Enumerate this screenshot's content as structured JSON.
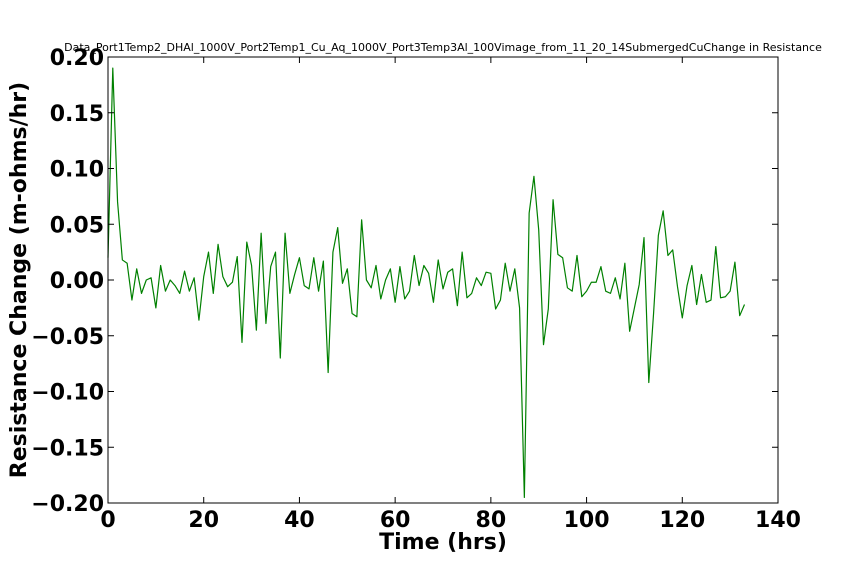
{
  "chart_data": {
    "type": "line",
    "title": "Data_Port1Temp2_DHAl_1000V_Port2Temp1_Cu_Aq_1000V_Port3Temp3Al_100Vimage_from_11_20_14SubmergedCuChange in Resistance",
    "xlabel": "Time (hrs)",
    "ylabel": "Resistance Change (m-ohms/hr)",
    "xlim": [
      0,
      140
    ],
    "ylim": [
      -0.2,
      0.2
    ],
    "x_ticks": [
      0,
      20,
      40,
      60,
      80,
      100,
      120,
      140
    ],
    "x_tick_labels": [
      "0",
      "20",
      "40",
      "60",
      "80",
      "100",
      "120",
      "140"
    ],
    "y_ticks": [
      -0.2,
      -0.15,
      -0.1,
      -0.05,
      0.0,
      0.05,
      0.1,
      0.15,
      0.2
    ],
    "y_tick_labels": [
      "−0.20",
      "−0.15",
      "−0.10",
      "−0.05",
      "0.00",
      "0.05",
      "0.10",
      "0.15",
      "0.20"
    ],
    "grid": false,
    "series": [
      {
        "color": "#008000",
        "points": [
          [
            0.0,
            0.02
          ],
          [
            1.0,
            0.19
          ],
          [
            2.0,
            0.07
          ],
          [
            3.0,
            0.018
          ],
          [
            4.0,
            0.015
          ],
          [
            5.0,
            -0.018
          ],
          [
            6.0,
            0.01
          ],
          [
            7.0,
            -0.012
          ],
          [
            8.0,
            0.0
          ],
          [
            9.0,
            0.002
          ],
          [
            10.0,
            -0.025
          ],
          [
            11.0,
            0.013
          ],
          [
            12.0,
            -0.01
          ],
          [
            13.0,
            0.0
          ],
          [
            14.0,
            -0.005
          ],
          [
            15.0,
            -0.012
          ],
          [
            16.0,
            0.008
          ],
          [
            17.0,
            -0.01
          ],
          [
            18.0,
            0.002
          ],
          [
            19.0,
            -0.036
          ],
          [
            20.0,
            0.003
          ],
          [
            21.0,
            0.025
          ],
          [
            22.0,
            -0.012
          ],
          [
            23.0,
            0.032
          ],
          [
            24.0,
            0.003
          ],
          [
            25.0,
            -0.006
          ],
          [
            26.0,
            -0.002
          ],
          [
            27.0,
            0.021
          ],
          [
            28.0,
            -0.056
          ],
          [
            29.0,
            0.034
          ],
          [
            30.0,
            0.013
          ],
          [
            31.0,
            -0.045
          ],
          [
            32.0,
            0.042
          ],
          [
            33.0,
            -0.039
          ],
          [
            34.0,
            0.012
          ],
          [
            35.0,
            0.025
          ],
          [
            36.0,
            -0.07
          ],
          [
            37.0,
            0.042
          ],
          [
            38.0,
            -0.012
          ],
          [
            39.0,
            0.005
          ],
          [
            40.0,
            0.02
          ],
          [
            41.0,
            -0.005
          ],
          [
            42.0,
            -0.008
          ],
          [
            43.0,
            0.02
          ],
          [
            44.0,
            -0.01
          ],
          [
            45.0,
            0.017
          ],
          [
            46.0,
            -0.083
          ],
          [
            47.0,
            0.025
          ],
          [
            48.0,
            0.047
          ],
          [
            49.0,
            -0.003
          ],
          [
            50.0,
            0.01
          ],
          [
            51.0,
            -0.03
          ],
          [
            52.0,
            -0.033
          ],
          [
            53.0,
            0.054
          ],
          [
            54.0,
            0.0
          ],
          [
            55.0,
            -0.007
          ],
          [
            56.0,
            0.013
          ],
          [
            57.0,
            -0.017
          ],
          [
            58.0,
            0.0
          ],
          [
            59.0,
            0.01
          ],
          [
            60.0,
            -0.02
          ],
          [
            61.0,
            0.012
          ],
          [
            62.0,
            -0.017
          ],
          [
            63.0,
            -0.01
          ],
          [
            64.0,
            0.022
          ],
          [
            65.0,
            -0.005
          ],
          [
            66.0,
            0.013
          ],
          [
            67.0,
            0.006
          ],
          [
            68.0,
            -0.02
          ],
          [
            69.0,
            0.018
          ],
          [
            70.0,
            -0.008
          ],
          [
            71.0,
            0.007
          ],
          [
            72.0,
            0.01
          ],
          [
            73.0,
            -0.023
          ],
          [
            74.0,
            0.025
          ],
          [
            75.0,
            -0.016
          ],
          [
            76.0,
            -0.012
          ],
          [
            77.0,
            0.002
          ],
          [
            78.0,
            -0.005
          ],
          [
            79.0,
            0.007
          ],
          [
            80.0,
            0.006
          ],
          [
            81.0,
            -0.026
          ],
          [
            82.0,
            -0.018
          ],
          [
            83.0,
            0.015
          ],
          [
            84.0,
            -0.01
          ],
          [
            85.0,
            0.01
          ],
          [
            86.0,
            -0.025
          ],
          [
            87.0,
            -0.195
          ],
          [
            88.0,
            0.06
          ],
          [
            89.0,
            0.093
          ],
          [
            90.0,
            0.045
          ],
          [
            91.0,
            -0.058
          ],
          [
            92.0,
            -0.026
          ],
          [
            93.0,
            0.072
          ],
          [
            94.0,
            0.023
          ],
          [
            95.0,
            0.02
          ],
          [
            96.0,
            -0.007
          ],
          [
            97.0,
            -0.01
          ],
          [
            98.0,
            0.022
          ],
          [
            99.0,
            -0.015
          ],
          [
            100.0,
            -0.01
          ],
          [
            101.0,
            -0.002
          ],
          [
            102.0,
            -0.002
          ],
          [
            103.0,
            0.012
          ],
          [
            104.0,
            -0.01
          ],
          [
            105.0,
            -0.012
          ],
          [
            106.0,
            0.002
          ],
          [
            107.0,
            -0.017
          ],
          [
            108.0,
            0.015
          ],
          [
            109.0,
            -0.046
          ],
          [
            110.0,
            -0.025
          ],
          [
            111.0,
            -0.004
          ],
          [
            112.0,
            0.038
          ],
          [
            113.0,
            -0.092
          ],
          [
            114.0,
            -0.03
          ],
          [
            115.0,
            0.04
          ],
          [
            116.0,
            0.062
          ],
          [
            117.0,
            0.022
          ],
          [
            118.0,
            0.027
          ],
          [
            119.0,
            -0.006
          ],
          [
            120.0,
            -0.034
          ],
          [
            121.0,
            -0.005
          ],
          [
            122.0,
            0.013
          ],
          [
            123.0,
            -0.022
          ],
          [
            124.0,
            0.005
          ],
          [
            125.0,
            -0.02
          ],
          [
            126.0,
            -0.018
          ],
          [
            127.0,
            0.03
          ],
          [
            128.0,
            -0.016
          ],
          [
            129.0,
            -0.015
          ],
          [
            130.0,
            -0.01
          ],
          [
            131.0,
            0.016
          ],
          [
            132.0,
            -0.032
          ],
          [
            133.0,
            -0.022
          ]
        ]
      }
    ]
  }
}
